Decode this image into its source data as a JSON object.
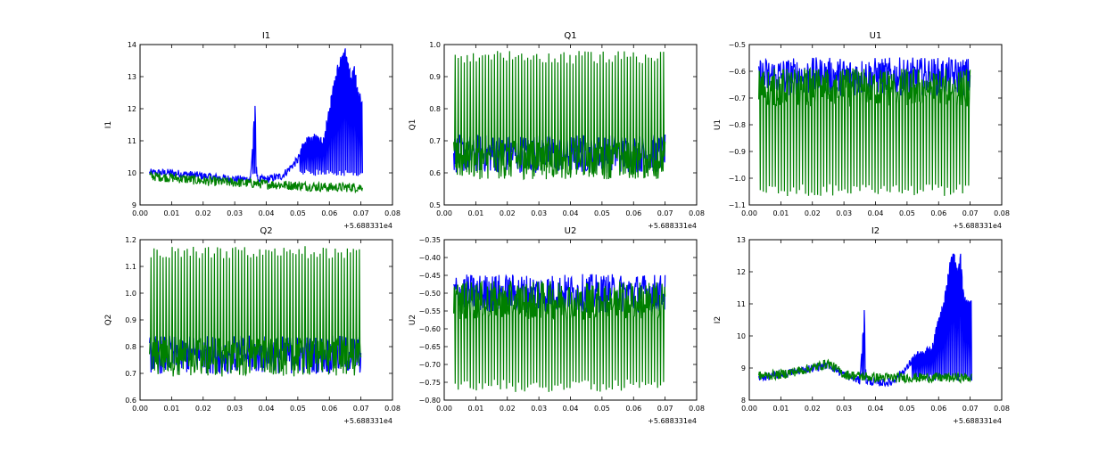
{
  "chart_data": [
    {
      "type": "line",
      "title": "I1",
      "ylabel": "I1",
      "xlim": [
        0.0,
        0.08
      ],
      "ylim": [
        9,
        14
      ],
      "xticks": [
        "0.00",
        "0.01",
        "0.02",
        "0.03",
        "0.04",
        "0.05",
        "0.06",
        "0.07",
        "0.08"
      ],
      "yticks": [
        "9",
        "10",
        "11",
        "12",
        "13",
        "14"
      ],
      "x_offset_label": "+5.688331e4",
      "series": [
        {
          "color": "#0000ff",
          "x": [
            0.003,
            0.01,
            0.02,
            0.03,
            0.035,
            0.0365,
            0.037,
            0.04,
            0.045,
            0.05,
            0.052,
            0.055,
            0.058,
            0.06,
            0.062,
            0.064,
            0.065,
            0.066,
            0.067,
            0.068,
            0.069,
            0.0705
          ],
          "y": [
            10.0,
            10.0,
            9.9,
            9.8,
            9.8,
            12.1,
            9.8,
            9.8,
            9.9,
            10.4,
            11.0,
            11.1,
            11.0,
            12.0,
            13.1,
            13.6,
            13.8,
            13.4,
            12.9,
            13.3,
            12.5,
            12.2
          ]
        },
        {
          "color": "#008000",
          "x": [
            0.003,
            0.01,
            0.02,
            0.03,
            0.04,
            0.05,
            0.06,
            0.07,
            0.0705
          ],
          "y": [
            9.9,
            9.85,
            9.75,
            9.7,
            9.65,
            9.6,
            9.55,
            9.55,
            9.6
          ]
        }
      ]
    },
    {
      "type": "line",
      "title": "Q1",
      "ylabel": "Q1",
      "xlim": [
        0.0,
        0.08
      ],
      "ylim": [
        0.5,
        1.0
      ],
      "xticks": [
        "0.00",
        "0.01",
        "0.02",
        "0.03",
        "0.04",
        "0.05",
        "0.06",
        "0.07",
        "0.08"
      ],
      "yticks": [
        "0.5",
        "0.6",
        "0.7",
        "0.8",
        "0.9",
        "1.0"
      ],
      "x_offset_label": "+5.688331e4",
      "series": [
        {
          "color": "#0000ff",
          "x": [
            0.003,
            0.07
          ],
          "y": [
            0.66,
            0.66
          ]
        },
        {
          "color": "#008000",
          "x": [
            0.003,
            0.07
          ],
          "y": [
            0.64,
            0.64
          ]
        }
      ]
    },
    {
      "type": "line",
      "title": "U1",
      "ylabel": "U1",
      "xlim": [
        0.0,
        0.08
      ],
      "ylim": [
        -1.1,
        -0.5
      ],
      "xticks": [
        "0.00",
        "0.01",
        "0.02",
        "0.03",
        "0.04",
        "0.05",
        "0.06",
        "0.07",
        "0.08"
      ],
      "yticks": [
        "−1.1",
        "−1.0",
        "−0.9",
        "−0.8",
        "−0.7",
        "−0.6",
        "−0.5"
      ],
      "x_offset_label": "+5.688331e4",
      "series": [
        {
          "color": "#0000ff",
          "x": [
            0.003,
            0.07
          ],
          "y": [
            -0.62,
            -0.62
          ]
        },
        {
          "color": "#008000",
          "x": [
            0.003,
            0.07
          ],
          "y": [
            -0.66,
            -0.66
          ]
        }
      ]
    },
    {
      "type": "line",
      "title": "Q2",
      "ylabel": "Q2",
      "xlim": [
        0.0,
        0.08
      ],
      "ylim": [
        0.6,
        1.2
      ],
      "xticks": [
        "0.00",
        "0.01",
        "0.02",
        "0.03",
        "0.04",
        "0.05",
        "0.06",
        "0.07",
        "0.08"
      ],
      "yticks": [
        "0.6",
        "0.7",
        "0.8",
        "0.9",
        "1.0",
        "1.1",
        "1.2"
      ],
      "x_offset_label": "+5.688331e4",
      "series": [
        {
          "color": "#0000ff",
          "x": [
            0.003,
            0.07
          ],
          "y": [
            0.77,
            0.77
          ]
        },
        {
          "color": "#008000",
          "x": [
            0.003,
            0.07
          ],
          "y": [
            0.76,
            0.76
          ]
        }
      ]
    },
    {
      "type": "line",
      "title": "U2",
      "ylabel": "U2",
      "xlim": [
        0.0,
        0.08
      ],
      "ylim": [
        -0.8,
        -0.35
      ],
      "xticks": [
        "0.00",
        "0.01",
        "0.02",
        "0.03",
        "0.04",
        "0.05",
        "0.06",
        "0.07",
        "0.08"
      ],
      "yticks": [
        "−0.80",
        "−0.75",
        "−0.70",
        "−0.65",
        "−0.60",
        "−0.55",
        "−0.50",
        "−0.45",
        "−0.40",
        "−0.35"
      ],
      "x_offset_label": "+5.688331e4",
      "series": [
        {
          "color": "#0000ff",
          "x": [
            0.003,
            0.07
          ],
          "y": [
            -0.5,
            -0.5
          ]
        },
        {
          "color": "#008000",
          "x": [
            0.003,
            0.07
          ],
          "y": [
            -0.52,
            -0.52
          ]
        }
      ]
    },
    {
      "type": "line",
      "title": "I2",
      "ylabel": "I2",
      "xlim": [
        0.0,
        0.08
      ],
      "ylim": [
        8,
        13
      ],
      "xticks": [
        "0.00",
        "0.01",
        "0.02",
        "0.03",
        "0.04",
        "0.05",
        "0.06",
        "0.07",
        "0.08"
      ],
      "yticks": [
        "8",
        "9",
        "10",
        "11",
        "12",
        "13"
      ],
      "x_offset_label": "+5.688331e4",
      "series": [
        {
          "color": "#0000ff",
          "x": [
            0.003,
            0.01,
            0.02,
            0.025,
            0.03,
            0.035,
            0.0365,
            0.037,
            0.04,
            0.045,
            0.05,
            0.052,
            0.055,
            0.058,
            0.06,
            0.062,
            0.064,
            0.065,
            0.066,
            0.067,
            0.068,
            0.0705
          ],
          "y": [
            8.7,
            8.8,
            9.0,
            9.1,
            8.8,
            8.6,
            10.8,
            8.6,
            8.55,
            8.55,
            9.0,
            9.3,
            9.5,
            9.6,
            10.5,
            11.2,
            12.5,
            12.5,
            12.0,
            12.5,
            11.2,
            11.0
          ]
        },
        {
          "color": "#008000",
          "x": [
            0.003,
            0.01,
            0.02,
            0.025,
            0.03,
            0.04,
            0.05,
            0.06,
            0.0705
          ],
          "y": [
            8.75,
            8.8,
            9.0,
            9.15,
            8.8,
            8.7,
            8.7,
            8.7,
            8.7
          ]
        }
      ]
    }
  ]
}
